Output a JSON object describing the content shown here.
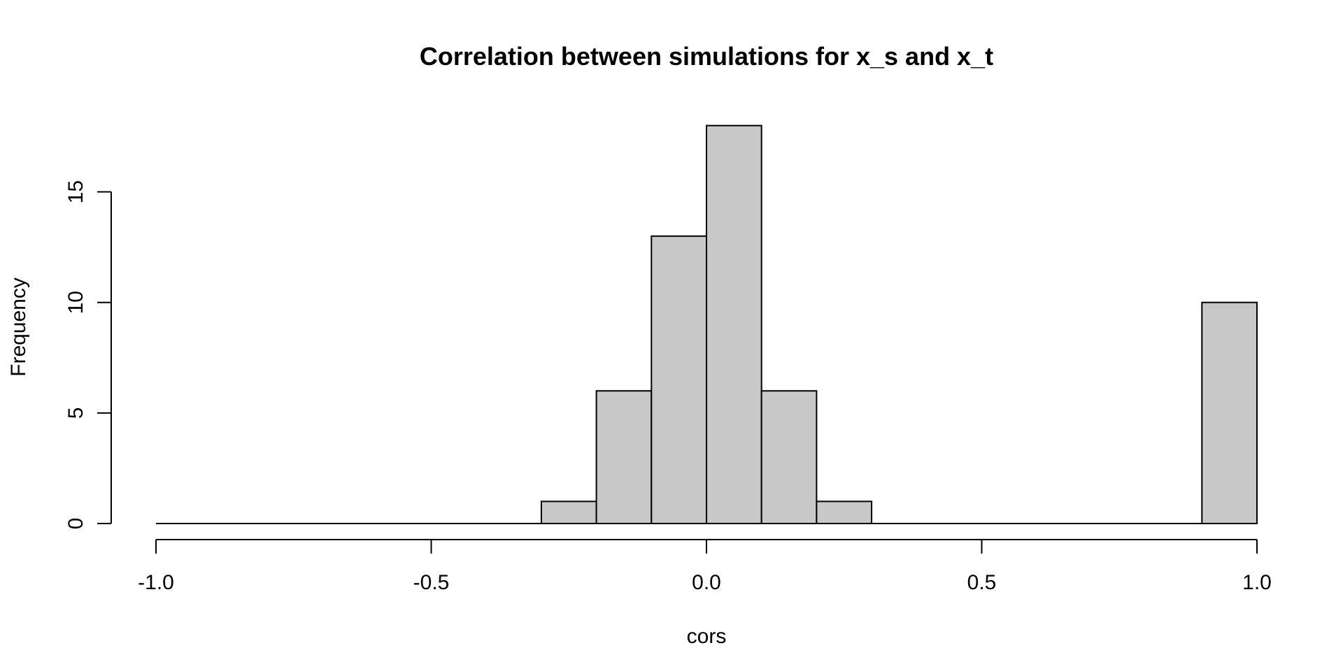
{
  "chart_data": {
    "type": "bar",
    "title": "Correlation between simulations for x_s and x_t",
    "xlabel": "cors",
    "ylabel": "Frequency",
    "bin_edges": [
      -1.0,
      -0.9,
      -0.8,
      -0.7,
      -0.6,
      -0.5,
      -0.4,
      -0.3,
      -0.2,
      -0.1,
      0.0,
      0.1,
      0.2,
      0.3,
      0.4,
      0.5,
      0.6,
      0.7,
      0.8,
      0.9,
      1.0
    ],
    "values": [
      0,
      0,
      0,
      0,
      0,
      0,
      0,
      1,
      6,
      13,
      18,
      6,
      1,
      0,
      0,
      0,
      0,
      0,
      0,
      10
    ],
    "xlim": [
      -1.0,
      1.0
    ],
    "ylim": [
      0,
      18
    ],
    "x_ticks": [
      -1.0,
      -0.5,
      0.0,
      0.5,
      1.0
    ],
    "x_tick_labels": [
      "-1.0",
      "-0.5",
      "0.0",
      "0.5",
      "1.0"
    ],
    "y_ticks": [
      0,
      5,
      10,
      15
    ],
    "y_tick_labels": [
      "0",
      "5",
      "10",
      "15"
    ],
    "grid": false,
    "bar_color": "#c8c8c8"
  }
}
